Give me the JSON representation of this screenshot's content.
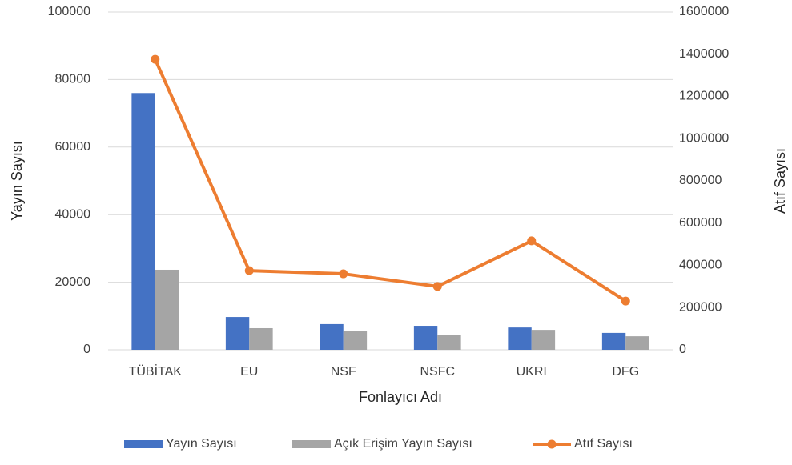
{
  "chart_data": {
    "type": "bar",
    "categories": [
      "TÜBİTAK",
      "EU",
      "NSF",
      "NSFC",
      "UKRI",
      "DFG"
    ],
    "series": [
      {
        "name": "Yayın Sayısı",
        "color": "#4472c4",
        "type": "bar",
        "values": [
          76000,
          9700,
          7600,
          7100,
          6600,
          5000
        ]
      },
      {
        "name": "Açık Erişim Yayın Sayısı",
        "color": "#a5a5a5",
        "type": "bar",
        "values": [
          23700,
          6400,
          5500,
          4500,
          5900,
          4000
        ]
      },
      {
        "name": "Atıf Sayısı",
        "color": "#ed7d31",
        "type": "line",
        "axis": "y2",
        "values": [
          1376000,
          375000,
          360000,
          300000,
          516000,
          231000
        ]
      }
    ],
    "xlabel": "Fonlayıcı Adı",
    "ylabel": "Yayın Sayısı",
    "y2label": "Atıf Sayısı",
    "ylim": [
      0,
      100000
    ],
    "yticks": [
      0,
      20000,
      40000,
      60000,
      80000,
      100000
    ],
    "y2lim": [
      0,
      1600000
    ],
    "y2ticks": [
      0,
      200000,
      400000,
      600000,
      800000,
      1000000,
      1200000,
      1400000,
      1600000
    ],
    "grid": true,
    "legend": "bottom"
  }
}
